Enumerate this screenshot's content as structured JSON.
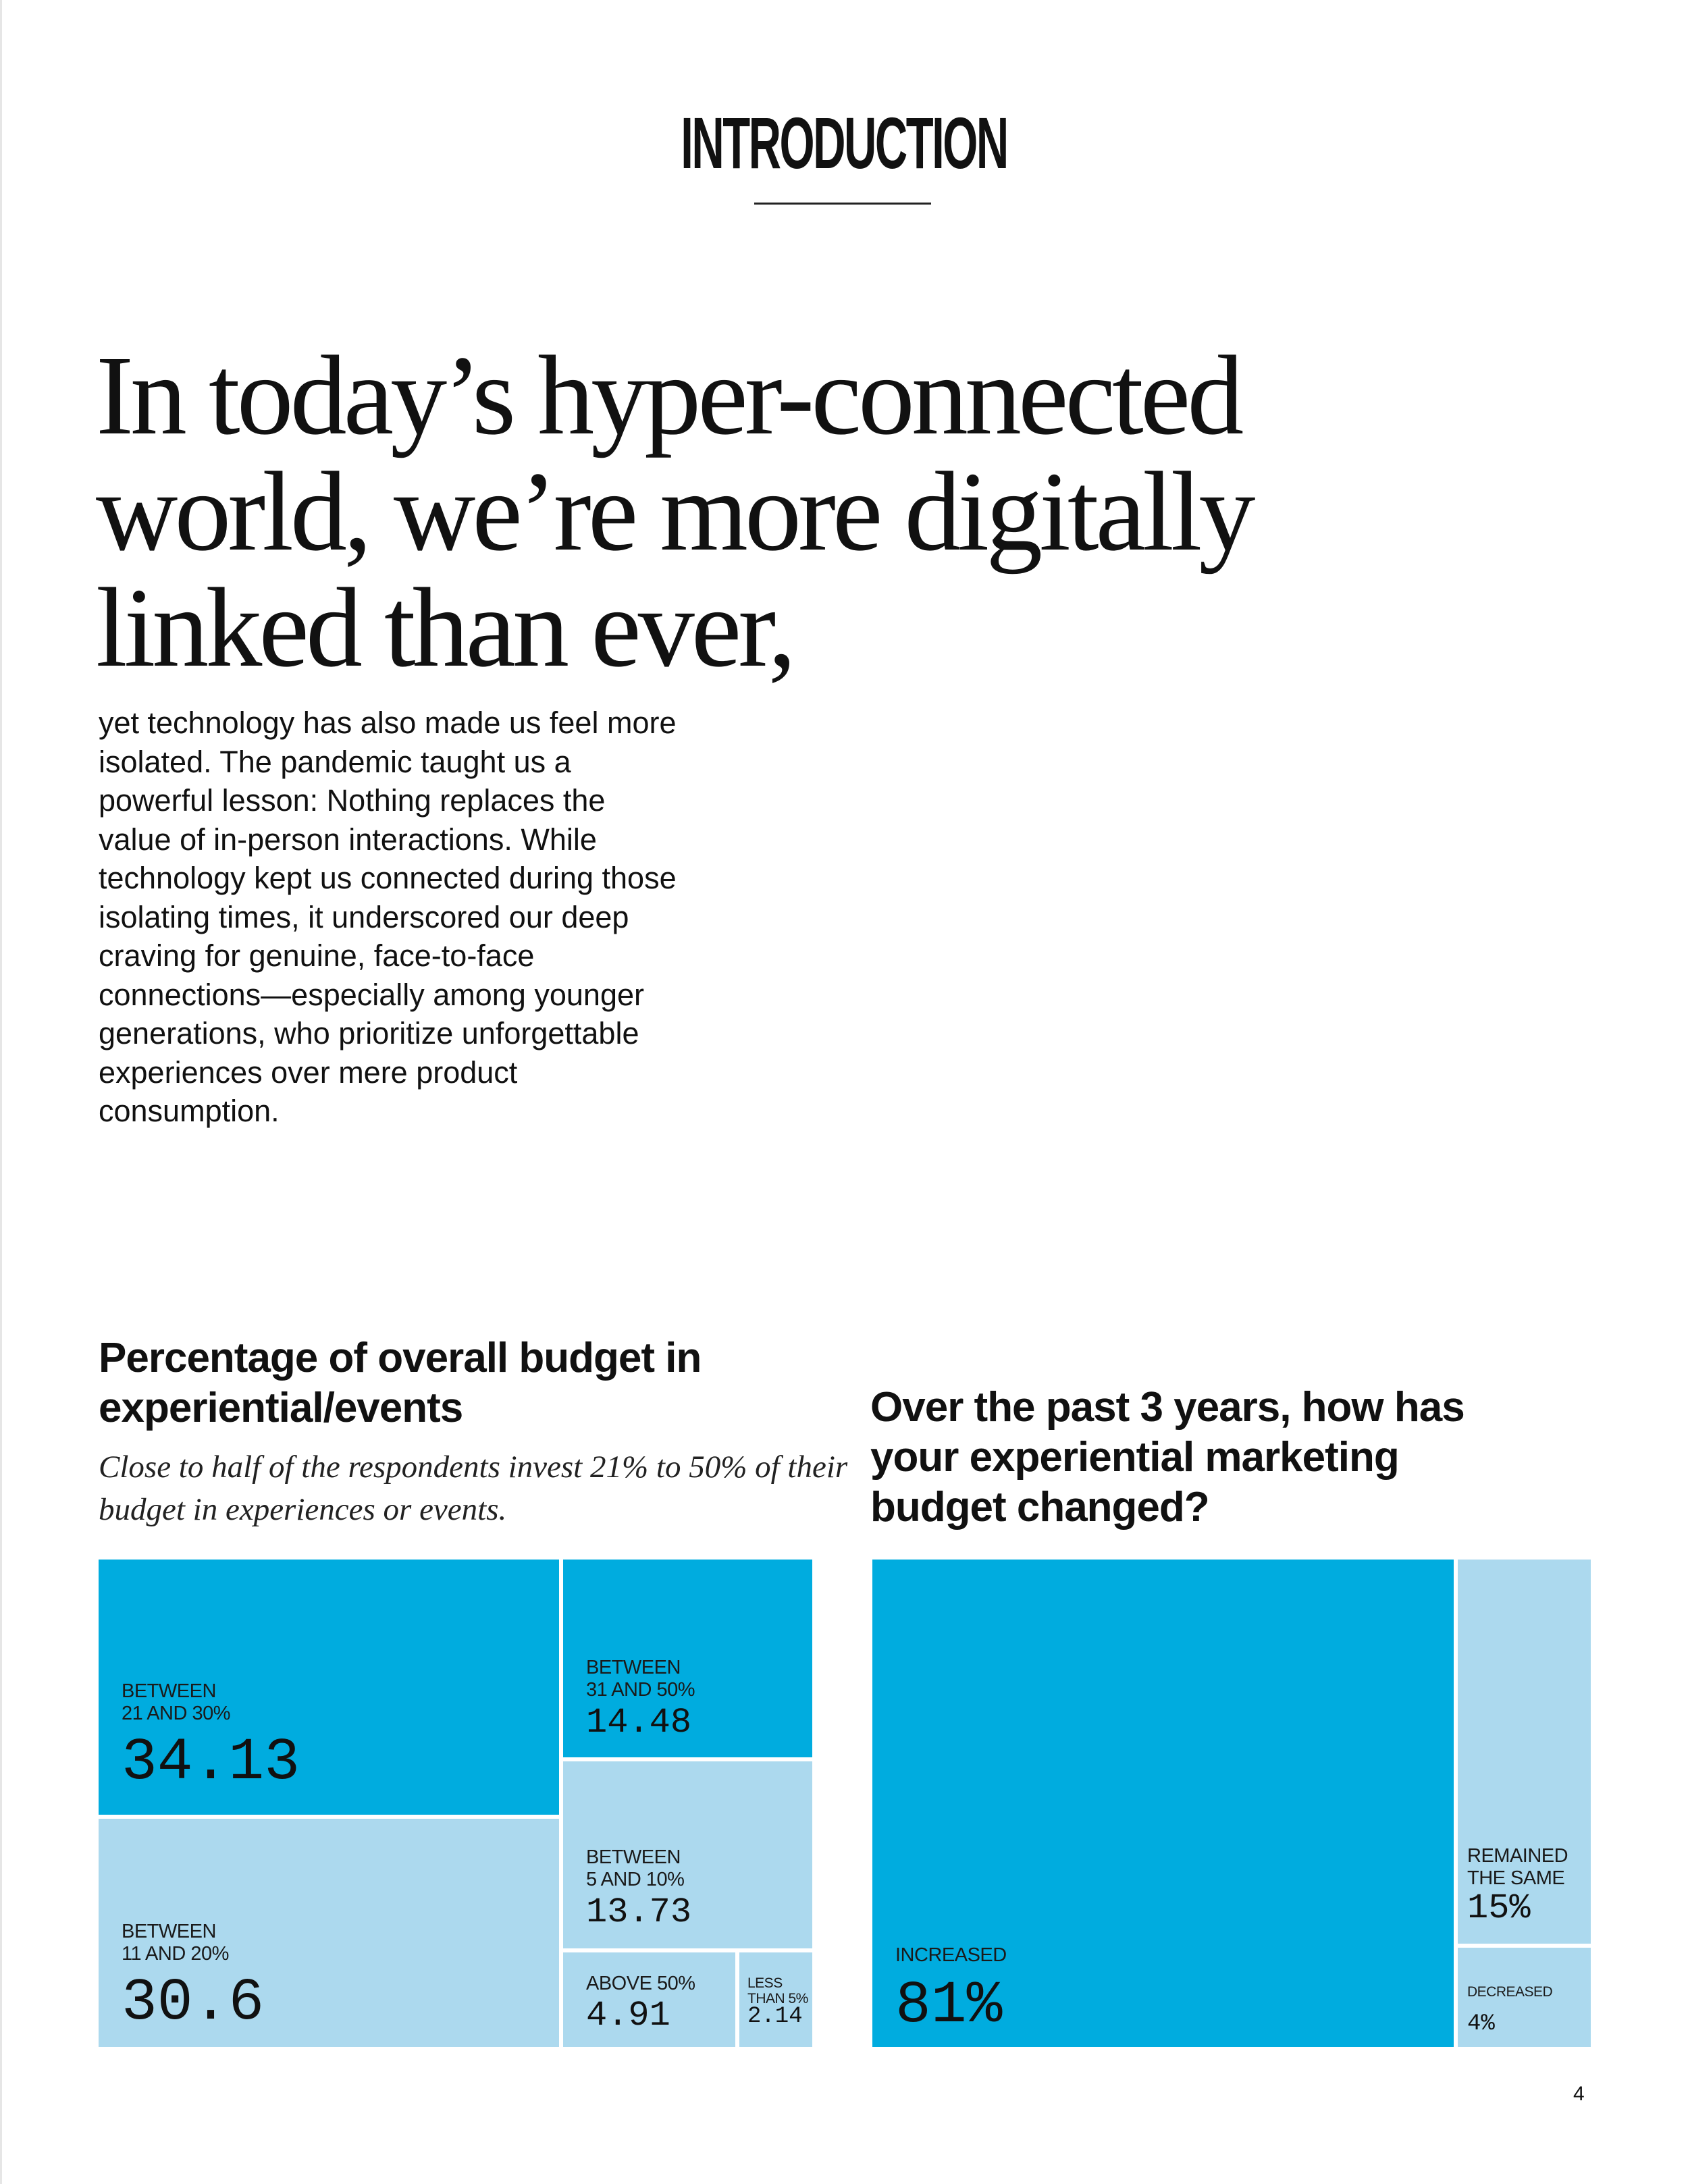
{
  "page": {
    "section_title": "INTRODUCTION",
    "headline": "In today’s hyper-connected world, we’re more digitally linked than ever,",
    "intro": "yet technology has also made us feel more isolated. The pandemic taught us a powerful lesson: Nothing replaces the value of in-person interactions. While technology kept us connected during those isolating times, it underscored our deep craving for genuine, face-to-face connections—especially among younger generations, who prioritize unforgettable experiences over mere product consumption.",
    "page_number": "4"
  },
  "colors": {
    "dark": "#00acdf",
    "light": "#acd9ee",
    "text": "#111111"
  },
  "chart_data": [
    {
      "type": "treemap",
      "title": "Percentage of overall budget in experiential/events",
      "subtitle": "Close to half of the respondents invest 21% to 50% of their budget in experiences or events.",
      "categories": [
        "Between 21 and 30%",
        "Between 11 and 20%",
        "Between 31 and 50%",
        "Between 5 and 10%",
        "Above 50%",
        "Less than 5%"
      ],
      "labels": [
        "BETWEEN\n21 AND 30%",
        "BETWEEN\n11 AND 20%",
        "BETWEEN\n31 AND 50%",
        "BETWEEN\n5 AND 10%",
        "ABOVE 50%",
        "LESS\nTHAN 5%"
      ],
      "display_values": [
        "34.13",
        "30.6",
        "14.48",
        "13.73",
        "4.91",
        "2.14"
      ],
      "values": [
        34.13,
        30.6,
        14.48,
        13.73,
        4.91,
        2.14
      ],
      "shade": [
        "dark",
        "light",
        "dark",
        "light",
        "light",
        "light"
      ]
    },
    {
      "type": "treemap",
      "title": "Over the past 3 years, how has your experiential marketing budget changed?",
      "categories": [
        "Increased",
        "Remained the same",
        "Decreased"
      ],
      "labels": [
        "INCREASED",
        "REMAINED\nTHE SAME",
        "DECREASED"
      ],
      "display_values": [
        "81%",
        "15%",
        "4%"
      ],
      "values": [
        81,
        15,
        4
      ],
      "shade": [
        "dark",
        "light",
        "light"
      ]
    }
  ]
}
